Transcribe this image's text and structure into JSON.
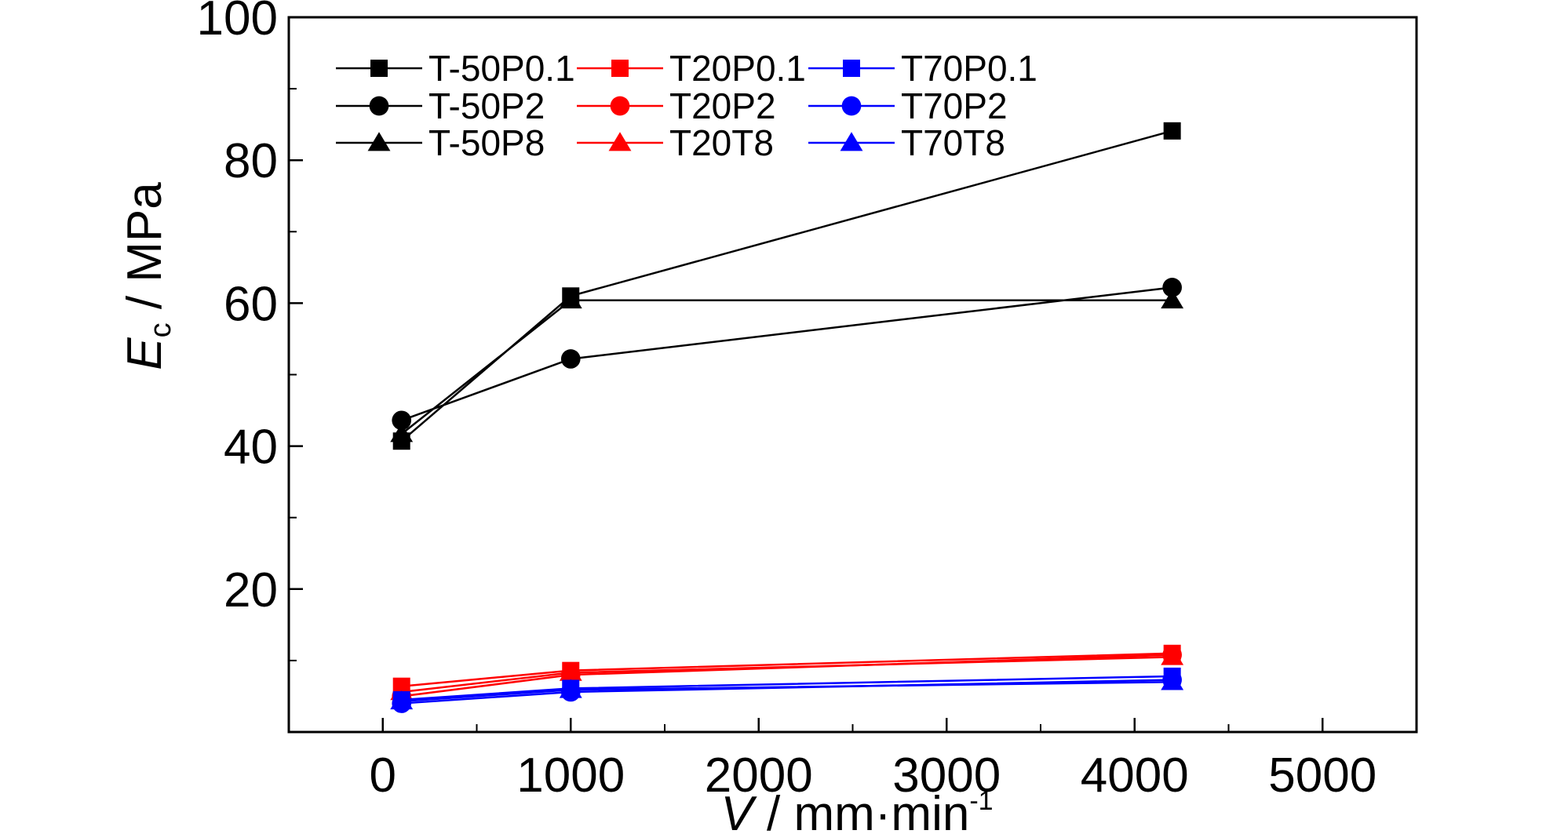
{
  "chart_data": {
    "type": "line",
    "title": "",
    "xlabel": {
      "var": "V",
      "sep": " / ",
      "unit": "mm·min",
      "exp": "-1"
    },
    "ylabel": {
      "var": "E",
      "sub": "c",
      "sep": " / ",
      "unit": "MPa"
    },
    "xlim": [
      -500,
      5500
    ],
    "ylim": [
      0,
      100
    ],
    "x_ticks": [
      0,
      1000,
      2000,
      3000,
      4000,
      5000
    ],
    "x_tick_labels": [
      "0",
      "1000",
      "2000",
      "3000",
      "4000",
      "5000"
    ],
    "y_ticks": [
      20,
      40,
      60,
      80,
      100
    ],
    "y_tick_labels": [
      "20",
      "40",
      "60",
      "80",
      "100"
    ],
    "grid": false,
    "legend_placement": "top-left",
    "x": [
      100,
      1000,
      4200
    ],
    "series": [
      {
        "name": "T-50P0.1",
        "color": "#000000",
        "marker": "square",
        "values": [
          40.7,
          61.0,
          84.1
        ]
      },
      {
        "name": "T-50P2",
        "color": "#000000",
        "marker": "circle",
        "values": [
          43.6,
          52.2,
          62.2
        ]
      },
      {
        "name": "T-50P8",
        "color": "#000000",
        "marker": "triangle",
        "values": [
          41.7,
          60.4,
          60.4
        ]
      },
      {
        "name": "T20P0.1",
        "color": "#ff0000",
        "marker": "square",
        "values": [
          6.4,
          8.6,
          11.0
        ]
      },
      {
        "name": "T20P2",
        "color": "#ff0000",
        "marker": "circle",
        "values": [
          5.0,
          8.0,
          10.8
        ]
      },
      {
        "name": "T20T8",
        "color": "#ff0000",
        "marker": "triangle",
        "values": [
          5.6,
          8.3,
          10.5
        ]
      },
      {
        "name": "T70P0.1",
        "color": "#0000ff",
        "marker": "square",
        "values": [
          4.5,
          6.1,
          7.8
        ]
      },
      {
        "name": "T70P2",
        "color": "#0000ff",
        "marker": "circle",
        "values": [
          4.0,
          5.6,
          7.3
        ]
      },
      {
        "name": "T70T8",
        "color": "#0000ff",
        "marker": "triangle",
        "values": [
          4.3,
          5.9,
          7.0
        ]
      }
    ]
  }
}
